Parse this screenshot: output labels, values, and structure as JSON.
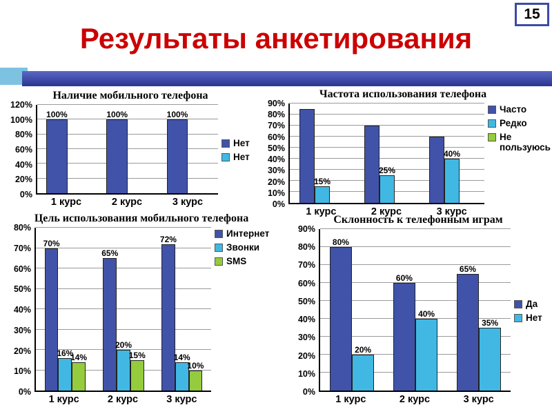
{
  "slide": {
    "number": "15",
    "title": "Результаты анкетирования",
    "title_color": "#cc0000",
    "band_dark_color": "#2a3590",
    "band_light_color": "#7ec2e2"
  },
  "chart_data": [
    {
      "type": "bar",
      "title": "Наличие  мобильного телефона",
      "categories": [
        "1 курс",
        "2 курс",
        "3 курс"
      ],
      "ylim": [
        0,
        120
      ],
      "ystep": 20,
      "grid": true,
      "legend_position": "right",
      "legend_valign": "middle",
      "series": [
        {
          "name": "Нет",
          "color": "#4153a8",
          "values": [
            100,
            100,
            100
          ],
          "show_labels": true
        },
        {
          "name": "Нет",
          "color": "#41b8e4",
          "values": [
            0,
            0,
            0
          ],
          "show_labels": false
        }
      ]
    },
    {
      "type": "bar",
      "title": "Частота использования телефона",
      "categories": [
        "1 курс",
        "2 курс",
        "3 курс"
      ],
      "ylim": [
        0,
        90
      ],
      "ystep": 10,
      "grid": true,
      "legend_position": "right",
      "legend_valign": "top",
      "series": [
        {
          "name": "Часто",
          "color": "#4153a8",
          "values": [
            85,
            70,
            60
          ],
          "show_labels": false
        },
        {
          "name": "Редко",
          "color": "#41b8e4",
          "values": [
            15,
            25,
            40
          ],
          "show_labels": true
        },
        {
          "name": "Не пользуюсь",
          "color": "#94cc3e",
          "values": [
            0,
            0,
            0
          ],
          "show_labels": false
        }
      ]
    },
    {
      "type": "bar",
      "title": "Цель использования мобильного телефона",
      "categories": [
        "1 курс",
        "2 курс",
        "3 курс"
      ],
      "ylim": [
        0,
        80
      ],
      "ystep": 10,
      "grid": true,
      "legend_position": "right",
      "legend_valign": "top",
      "series": [
        {
          "name": "Интернет",
          "color": "#4153a8",
          "values": [
            70,
            65,
            72
          ],
          "show_labels": true
        },
        {
          "name": "Звонки",
          "color": "#41b8e4",
          "values": [
            16,
            20,
            14
          ],
          "show_labels": true
        },
        {
          "name": "SMS",
          "color": "#94cc3e",
          "values": [
            14,
            15,
            10
          ],
          "show_labels": true
        }
      ]
    },
    {
      "type": "bar",
      "title": "Склонность к телефонным  играм",
      "categories": [
        "1 курс",
        "2 курс",
        "3 курс"
      ],
      "ylim": [
        0,
        90
      ],
      "ystep": 10,
      "grid": true,
      "legend_position": "right",
      "legend_valign": "middle",
      "series": [
        {
          "name": "Да",
          "color": "#4153a8",
          "values": [
            80,
            60,
            65
          ],
          "show_labels": true
        },
        {
          "name": "Нет",
          "color": "#41b8e4",
          "values": [
            20,
            40,
            35
          ],
          "show_labels": true
        }
      ]
    }
  ]
}
